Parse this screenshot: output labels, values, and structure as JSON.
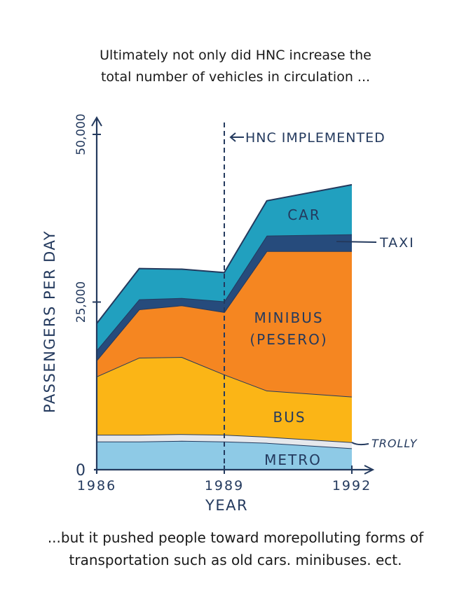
{
  "captions": {
    "top_line1": "Ultimately not only did HNC increase the",
    "top_line2": "total number of vehicles in circulation ...",
    "bottom_line1": "...but it pushed people toward morepolluting forms of",
    "bottom_line2": "transportation such as old cars. minibuses. ect."
  },
  "chart_data": {
    "type": "area",
    "stacked": true,
    "title": "",
    "xlabel": "YEAR",
    "ylabel": "PASSENGERS PER DAY",
    "x": [
      1986,
      1987,
      1988,
      1989,
      1990,
      1992
    ],
    "xticks": [
      "1986",
      "1989",
      "1992"
    ],
    "yticks": [
      "0",
      "25,000",
      "50,000"
    ],
    "ylim": [
      0,
      50000
    ],
    "xlim": [
      1986,
      1992
    ],
    "grid": false,
    "annotation": {
      "label": "HNC IMPLEMENTED",
      "x": 1989
    },
    "series": [
      {
        "name": "METRO",
        "color": "#8ecae6",
        "values": [
          4200,
          4200,
          4300,
          4200,
          4000,
          3200
        ]
      },
      {
        "name": "TROLLY",
        "color": "#e6e8ec",
        "values": [
          1000,
          1000,
          1000,
          1000,
          900,
          900
        ]
      },
      {
        "name": "BUS",
        "color": "#fbb516",
        "values": [
          8700,
          11500,
          11500,
          9000,
          6900,
          6800
        ]
      },
      {
        "name": "MINIBUS (PESERO)",
        "color": "#f58621",
        "values": [
          2400,
          7200,
          7700,
          9300,
          20800,
          21700
        ]
      },
      {
        "name": "TAXI",
        "color": "#264b7c",
        "values": [
          1500,
          1500,
          1100,
          1600,
          2300,
          2500
        ]
      },
      {
        "name": "CAR",
        "color": "#21a0bf",
        "values": [
          4000,
          4600,
          4300,
          4300,
          5200,
          7400
        ]
      }
    ]
  }
}
